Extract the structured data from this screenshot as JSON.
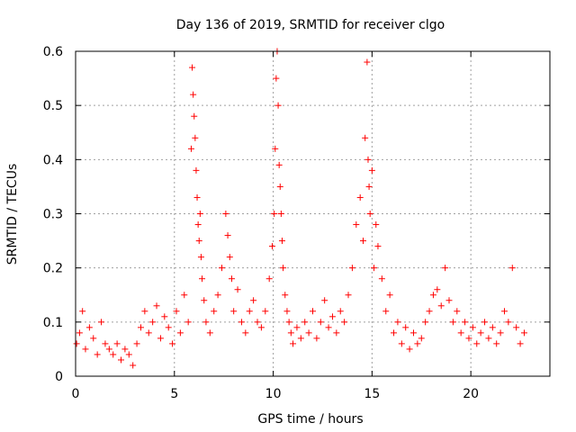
{
  "chart_data": {
    "type": "scatter",
    "title": "Day 136 of 2019, SRMTID for receiver clgo",
    "xlabel": "GPS time / hours",
    "ylabel": "SRMTID / TECUs",
    "xlim": [
      0,
      24
    ],
    "ylim": [
      0,
      0.6
    ],
    "xticks": [
      0,
      5,
      10,
      15,
      20
    ],
    "xtick_labels": [
      "0",
      "5",
      "10",
      "15",
      "20"
    ],
    "yticks": [
      0,
      0.1,
      0.2,
      0.3,
      0.4,
      0.5,
      0.6
    ],
    "ytick_labels": [
      "0",
      "0.1",
      "0.2",
      "0.3",
      "0.4",
      "0.5",
      "0.6"
    ],
    "grid": true,
    "marker": "+",
    "color": "#ff0000",
    "series": [
      {
        "name": "SRMTID",
        "x": [
          0.05,
          0.2,
          0.35,
          0.5,
          0.7,
          0.9,
          1.1,
          1.3,
          1.5,
          1.7,
          1.9,
          2.1,
          2.3,
          2.5,
          2.7,
          2.9,
          3.1,
          3.3,
          3.5,
          3.7,
          3.9,
          4.1,
          4.3,
          4.5,
          4.7,
          4.9,
          5.1,
          5.3,
          5.5,
          5.7,
          5.85,
          5.9,
          5.95,
          6.0,
          6.05,
          6.1,
          6.15,
          6.2,
          6.25,
          6.3,
          6.35,
          6.4,
          6.5,
          6.6,
          6.8,
          7.0,
          7.2,
          7.4,
          7.6,
          7.7,
          7.8,
          7.9,
          8.0,
          8.2,
          8.4,
          8.6,
          8.8,
          9.0,
          9.2,
          9.4,
          9.6,
          9.8,
          9.95,
          10.05,
          10.1,
          10.15,
          10.2,
          10.25,
          10.3,
          10.35,
          10.4,
          10.45,
          10.5,
          10.6,
          10.7,
          10.8,
          10.9,
          11.0,
          11.2,
          11.4,
          11.6,
          11.8,
          12.0,
          12.2,
          12.4,
          12.6,
          12.8,
          13.0,
          13.2,
          13.4,
          13.6,
          13.8,
          14.0,
          14.2,
          14.4,
          14.55,
          14.65,
          14.75,
          14.8,
          14.85,
          14.9,
          15.0,
          15.1,
          15.2,
          15.3,
          15.5,
          15.7,
          15.9,
          16.1,
          16.3,
          16.5,
          16.7,
          16.9,
          17.1,
          17.3,
          17.5,
          17.7,
          17.9,
          18.1,
          18.3,
          18.5,
          18.7,
          18.9,
          19.1,
          19.3,
          19.5,
          19.7,
          19.9,
          20.1,
          20.3,
          20.5,
          20.7,
          20.9,
          21.1,
          21.3,
          21.5,
          21.7,
          21.9,
          22.1,
          22.3,
          22.5,
          22.7
        ],
        "y": [
          0.06,
          0.08,
          0.12,
          0.05,
          0.09,
          0.07,
          0.04,
          0.1,
          0.06,
          0.05,
          0.04,
          0.06,
          0.03,
          0.05,
          0.04,
          0.02,
          0.06,
          0.09,
          0.12,
          0.08,
          0.1,
          0.13,
          0.07,
          0.11,
          0.09,
          0.06,
          0.12,
          0.08,
          0.15,
          0.1,
          0.42,
          0.57,
          0.52,
          0.48,
          0.44,
          0.38,
          0.33,
          0.28,
          0.25,
          0.3,
          0.22,
          0.18,
          0.14,
          0.1,
          0.08,
          0.12,
          0.15,
          0.2,
          0.3,
          0.26,
          0.22,
          0.18,
          0.12,
          0.16,
          0.1,
          0.08,
          0.12,
          0.14,
          0.1,
          0.09,
          0.12,
          0.18,
          0.24,
          0.3,
          0.42,
          0.55,
          0.6,
          0.5,
          0.39,
          0.35,
          0.3,
          0.25,
          0.2,
          0.15,
          0.12,
          0.1,
          0.08,
          0.06,
          0.09,
          0.07,
          0.1,
          0.08,
          0.12,
          0.07,
          0.1,
          0.14,
          0.09,
          0.11,
          0.08,
          0.12,
          0.1,
          0.15,
          0.2,
          0.28,
          0.33,
          0.25,
          0.44,
          0.58,
          0.4,
          0.35,
          0.3,
          0.38,
          0.2,
          0.28,
          0.24,
          0.18,
          0.12,
          0.15,
          0.08,
          0.1,
          0.06,
          0.09,
          0.05,
          0.08,
          0.06,
          0.07,
          0.1,
          0.12,
          0.15,
          0.16,
          0.13,
          0.2,
          0.14,
          0.1,
          0.12,
          0.08,
          0.1,
          0.07,
          0.09,
          0.06,
          0.08,
          0.1,
          0.07,
          0.09,
          0.06,
          0.08,
          0.12,
          0.1,
          0.2,
          0.09,
          0.06,
          0.08
        ]
      }
    ]
  }
}
